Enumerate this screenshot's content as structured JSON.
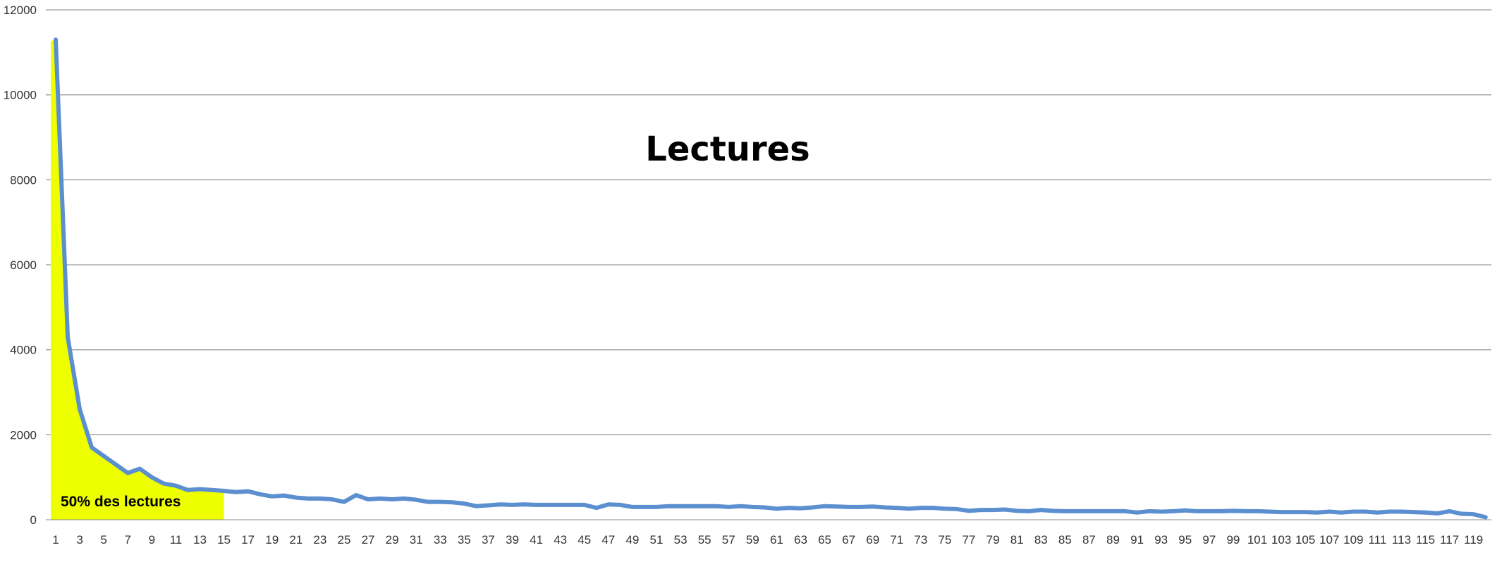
{
  "chart_data": {
    "type": "line",
    "title": "Lectures",
    "xlabel": "",
    "ylabel": "",
    "ylim": [
      0,
      12000
    ],
    "y_ticks": [
      0,
      2000,
      4000,
      6000,
      8000,
      10000,
      12000
    ],
    "x_tick_labels": [
      "1",
      "3",
      "5",
      "7",
      "9",
      "11",
      "13",
      "15",
      "17",
      "19",
      "21",
      "23",
      "25",
      "27",
      "29",
      "31",
      "33",
      "35",
      "37",
      "39",
      "41",
      "43",
      "45",
      "47",
      "49",
      "51",
      "53",
      "55",
      "57",
      "59",
      "61",
      "63",
      "65",
      "67",
      "69",
      "71",
      "73",
      "75",
      "77",
      "79",
      "81",
      "83",
      "85",
      "87",
      "89",
      "91",
      "93",
      "95",
      "97",
      "99",
      "101",
      "103",
      "105",
      "107",
      "109",
      "111",
      "113",
      "115",
      "117",
      "119"
    ],
    "x": [
      1,
      2,
      3,
      4,
      5,
      6,
      7,
      8,
      9,
      10,
      11,
      12,
      13,
      14,
      15,
      16,
      17,
      18,
      19,
      20,
      21,
      22,
      23,
      24,
      25,
      26,
      27,
      28,
      29,
      30,
      31,
      32,
      33,
      34,
      35,
      36,
      37,
      38,
      39,
      40,
      41,
      42,
      43,
      44,
      45,
      46,
      47,
      48,
      49,
      50,
      51,
      52,
      53,
      54,
      55,
      56,
      57,
      58,
      59,
      60,
      61,
      62,
      63,
      64,
      65,
      66,
      67,
      68,
      69,
      70,
      71,
      72,
      73,
      74,
      75,
      76,
      77,
      78,
      79,
      80,
      81,
      82,
      83,
      84,
      85,
      86,
      87,
      88,
      89,
      90,
      91,
      92,
      93,
      94,
      95,
      96,
      97,
      98,
      99,
      100,
      101,
      102,
      103,
      104,
      105,
      106,
      107,
      108,
      109,
      110,
      111,
      112,
      113,
      114,
      115,
      116,
      117,
      118,
      119,
      120
    ],
    "series": [
      {
        "color": "#5B8FD0",
        "values": [
          11300,
          4300,
          2600,
          1700,
          1500,
          1300,
          1100,
          1200,
          1000,
          850,
          800,
          700,
          720,
          700,
          680,
          650,
          670,
          600,
          550,
          570,
          520,
          500,
          500,
          480,
          420,
          580,
          480,
          500,
          480,
          500,
          470,
          420,
          420,
          410,
          380,
          320,
          340,
          360,
          350,
          360,
          350,
          350,
          350,
          350,
          350,
          280,
          360,
          350,
          300,
          300,
          300,
          320,
          320,
          320,
          320,
          320,
          300,
          320,
          300,
          290,
          260,
          280,
          270,
          290,
          320,
          310,
          300,
          300,
          310,
          290,
          280,
          260,
          280,
          280,
          260,
          250,
          210,
          230,
          230,
          240,
          210,
          200,
          230,
          210,
          200,
          200,
          200,
          200,
          200,
          200,
          170,
          200,
          190,
          200,
          220,
          200,
          200,
          200,
          210,
          200,
          200,
          190,
          180,
          180,
          180,
          170,
          190,
          170,
          190,
          190,
          170,
          190,
          190,
          180,
          170,
          150,
          200,
          140,
          130,
          60
        ],
        "highlight": {
          "x_range": [
            1,
            15
          ],
          "label": "50% des lectures",
          "color": "#EEFF00"
        }
      }
    ],
    "grid": true,
    "legend": "none"
  }
}
